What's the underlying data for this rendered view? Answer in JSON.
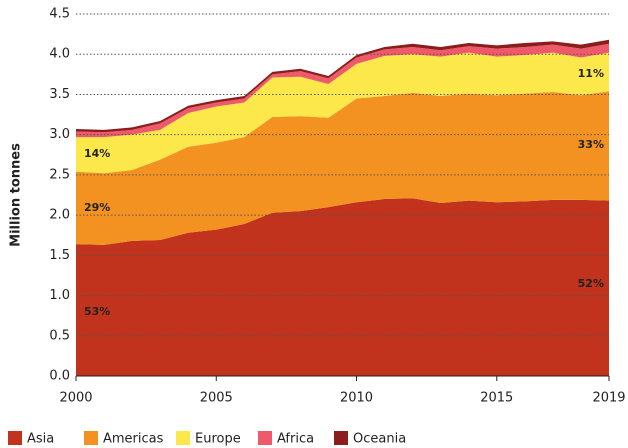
{
  "chart_data": {
    "type": "stacked_area",
    "y_label": "Million tonnes",
    "x": [
      2000,
      2001,
      2002,
      2003,
      2004,
      2005,
      2006,
      2007,
      2008,
      2009,
      2010,
      2011,
      2012,
      2013,
      2014,
      2015,
      2016,
      2017,
      2018,
      2019
    ],
    "xlim": [
      2000,
      2019
    ],
    "xticks": [
      2000,
      2005,
      2010,
      2015,
      2019
    ],
    "ylim": [
      0,
      4.5
    ],
    "yticks": [
      {
        "value": 0,
        "label": "0.0"
      },
      0.5,
      {
        "value": 1,
        "label": "1.0"
      },
      1.5,
      {
        "value": 2,
        "label": "2.0"
      },
      2.5,
      {
        "value": 3,
        "label": "3.0"
      },
      3.5,
      {
        "value": 4,
        "label": "4.0"
      },
      4.5
    ],
    "grid": true,
    "legend": "bottom",
    "series": [
      {
        "name": "Asia",
        "color": "#c1331c",
        "values": [
          1.64,
          1.63,
          1.68,
          1.69,
          1.78,
          1.82,
          1.89,
          2.03,
          2.05,
          2.1,
          2.16,
          2.2,
          2.21,
          2.15,
          2.18,
          2.16,
          2.17,
          2.19,
          2.19,
          2.18
        ]
      },
      {
        "name": "Americas",
        "color": "#f39220",
        "values": [
          0.9,
          0.89,
          0.88,
          1.0,
          1.07,
          1.08,
          1.08,
          1.19,
          1.18,
          1.11,
          1.29,
          1.28,
          1.31,
          1.33,
          1.33,
          1.33,
          1.34,
          1.34,
          1.3,
          1.36
        ]
      },
      {
        "name": "Europe",
        "color": "#fce84b",
        "values": [
          0.43,
          0.45,
          0.44,
          0.37,
          0.42,
          0.45,
          0.43,
          0.49,
          0.49,
          0.42,
          0.43,
          0.5,
          0.48,
          0.49,
          0.51,
          0.48,
          0.48,
          0.49,
          0.47,
          0.48
        ]
      },
      {
        "name": "Africa",
        "color": "#ef5a6a",
        "values": [
          0.07,
          0.06,
          0.06,
          0.08,
          0.06,
          0.05,
          0.05,
          0.04,
          0.07,
          0.07,
          0.08,
          0.08,
          0.09,
          0.08,
          0.08,
          0.1,
          0.1,
          0.1,
          0.11,
          0.11
        ]
      },
      {
        "name": "Oceania",
        "color": "#8c1d1d",
        "values": [
          0.03,
          0.03,
          0.03,
          0.03,
          0.03,
          0.03,
          0.03,
          0.03,
          0.03,
          0.03,
          0.03,
          0.03,
          0.04,
          0.04,
          0.04,
          0.04,
          0.05,
          0.04,
          0.05,
          0.05
        ]
      }
    ],
    "annotations": [
      "53%",
      "29%",
      "14%",
      "52%",
      "33%",
      "11%"
    ]
  }
}
